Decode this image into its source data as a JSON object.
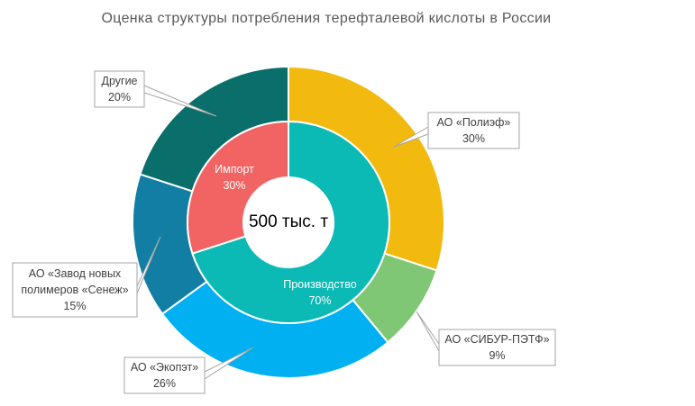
{
  "chart_data": {
    "type": "pie",
    "title": "Оценка структуры потребления терефталевой кислоты в России",
    "center_label": "500 тыс. т",
    "inner_ring": [
      {
        "name": "Производство",
        "value": 70,
        "label": "70%",
        "color": "#0bb9b5"
      },
      {
        "name": "Импорт",
        "value": 30,
        "label": "30%",
        "color": "#f26463"
      }
    ],
    "outer_ring": [
      {
        "name_lines": [
          "АО «Полиэф»"
        ],
        "value": 30,
        "label": "30%",
        "color": "#f2b90f"
      },
      {
        "name_lines": [
          "АО «СИБУР-ПЭТФ»"
        ],
        "value": 9,
        "label": "9%",
        "color": "#80c775"
      },
      {
        "name_lines": [
          "АО «Экопэт»"
        ],
        "value": 26,
        "label": "26%",
        "color": "#00b0f0"
      },
      {
        "name_lines": [
          "АО «Завод новых",
          "полимеров «Сенеж»"
        ],
        "value": 15,
        "label": "15%",
        "color": "#127ea4"
      },
      {
        "name_lines": [
          "Другие"
        ],
        "value": 20,
        "label": "20%",
        "color": "#0a6f6b"
      }
    ]
  }
}
